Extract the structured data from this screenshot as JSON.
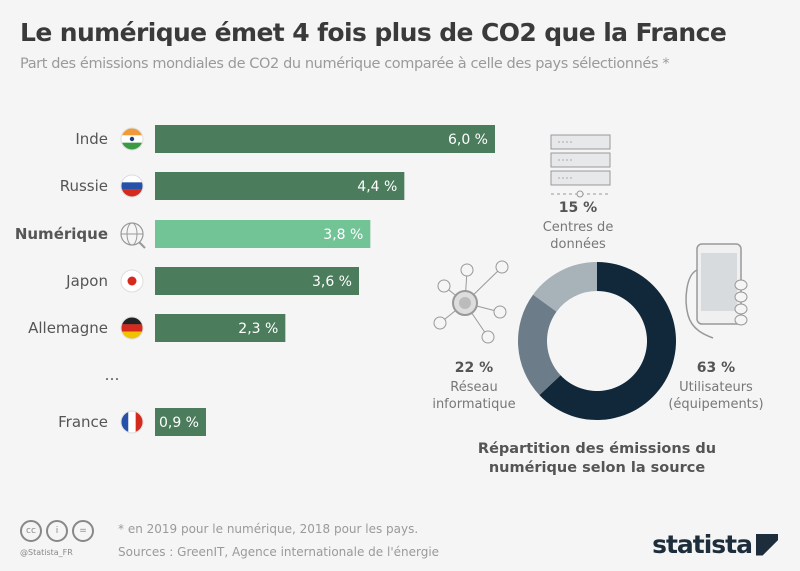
{
  "title": "Le numérique émet 4 fois plus de CO2 que la France",
  "subtitle": "Part des émissions mondiales de CO2 du numérique comparée à celle des pays sélectionnés *",
  "chart_data": [
    {
      "type": "bar",
      "orientation": "horizontal",
      "categories": [
        "Inde",
        "Russie",
        "Numérique",
        "Japon",
        "Allemagne",
        "…",
        "France"
      ],
      "values": [
        6.0,
        4.4,
        3.8,
        3.6,
        2.3,
        null,
        0.9
      ],
      "value_labels": [
        "6,0 %",
        "4,4 %",
        "3,8 %",
        "3,6 %",
        "2,3 %",
        "",
        "0,9 %"
      ],
      "icons": [
        "india-flag-icon",
        "russia-flag-icon",
        "globe-icon",
        "japan-flag-icon",
        "germany-flag-icon",
        "",
        "france-flag-icon"
      ],
      "highlight": "Numérique",
      "colors": {
        "default": "#4b7d5d",
        "highlight": "#72c497"
      },
      "xlim": [
        0,
        6
      ],
      "grid": false
    },
    {
      "type": "pie",
      "donut": true,
      "title": "Répartition des émissions du numérique selon la source",
      "slices": [
        {
          "label_lines": [
            "Utilisateurs",
            "(équipements)"
          ],
          "value": 63,
          "value_label": "63 %",
          "color": "#10283a",
          "icon": "smartphone-icon"
        },
        {
          "label_lines": [
            "Réseau",
            "informatique"
          ],
          "value": 22,
          "value_label": "22 %",
          "color": "#6c7d89",
          "icon": "network-icon"
        },
        {
          "label_lines": [
            "Centres de",
            "données"
          ],
          "value": 15,
          "value_label": "15 %",
          "color": "#a8b2b9",
          "icon": "server-icon"
        }
      ]
    }
  ],
  "footer": {
    "note": "* en 2019 pour le numérique, 2018 pour les pays.",
    "sources": "Sources : GreenIT, Agence internationale de l'énergie",
    "handle": "@Statista_FR",
    "license_icons": [
      "cc",
      "i",
      "="
    ],
    "logo": "statista"
  }
}
